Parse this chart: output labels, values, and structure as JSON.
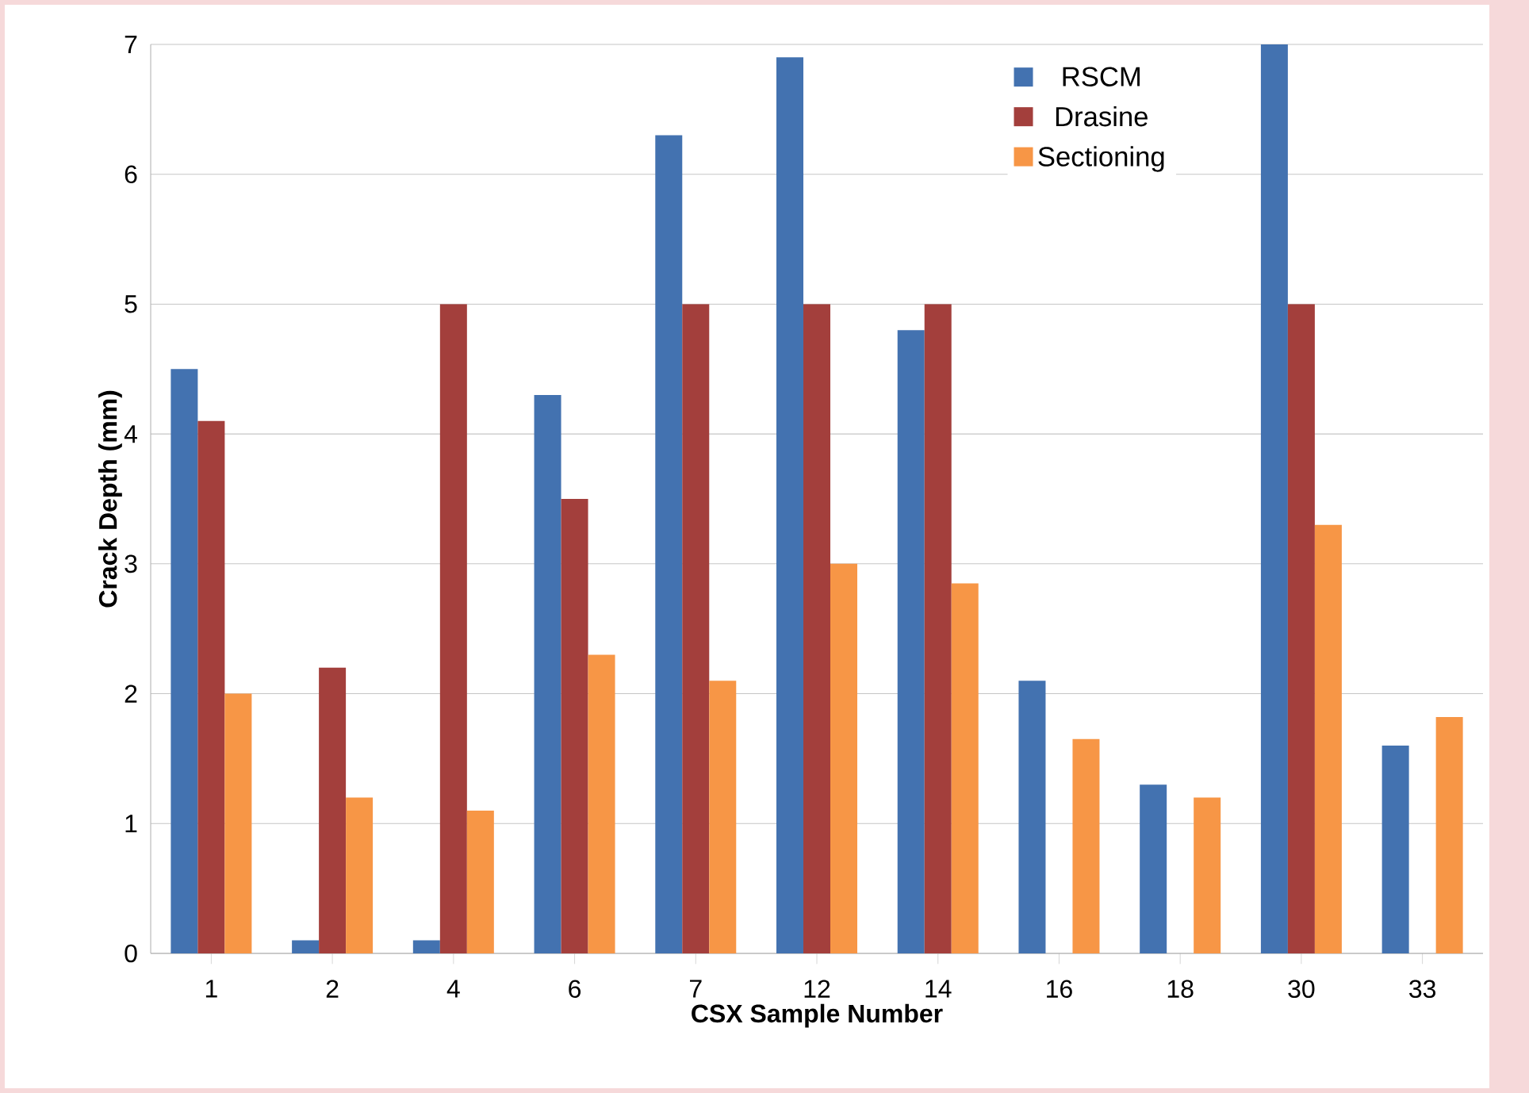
{
  "chart_data": {
    "type": "bar",
    "xlabel": "CSX Sample Number",
    "ylabel": "Crack Depth (mm)",
    "categories": [
      "1",
      "2",
      "4",
      "6",
      "7",
      "12",
      "14",
      "16",
      "18",
      "30",
      "33"
    ],
    "series": [
      {
        "name": "RSCM",
        "color": "#4372b0",
        "values": [
          4.5,
          0.1,
          0.1,
          4.3,
          6.3,
          6.9,
          4.8,
          2.1,
          1.3,
          7.0,
          1.6
        ]
      },
      {
        "name": "Drasine",
        "color": "#a33f3c",
        "values": [
          4.1,
          2.2,
          5.0,
          3.5,
          5.0,
          5.0,
          5.0,
          null,
          null,
          5.0,
          null
        ]
      },
      {
        "name": "Sectioning",
        "color": "#f79646",
        "values": [
          2.0,
          1.2,
          1.1,
          2.3,
          2.1,
          3.0,
          2.85,
          1.65,
          1.2,
          3.3,
          1.82
        ]
      }
    ],
    "ylim": [
      0,
      7
    ],
    "yticks": [
      0,
      1,
      2,
      3,
      4,
      5,
      6,
      7
    ],
    "grid": "y",
    "legend": "top right"
  }
}
